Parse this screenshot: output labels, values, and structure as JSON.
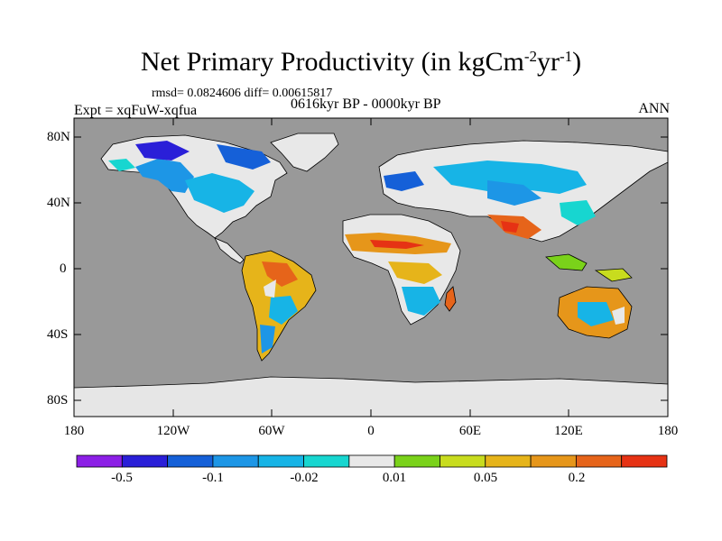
{
  "title": {
    "prefix": "Net Primary Productivity (in kgCm",
    "exp1": "-2",
    "middle": "yr",
    "exp2": "-1",
    "suffix": ")"
  },
  "stats": "rmsd= 0.0824606 diff= 0.00615817",
  "experiment": "Expt = xqFuW-xqfua",
  "period": "0616kyr BP - 0000kyr BP",
  "season": "ANN",
  "axes": {
    "y_ticks": [
      "80N",
      "40N",
      "0",
      "40S",
      "80S"
    ],
    "x_ticks": [
      "180",
      "120W",
      "60W",
      "0",
      "60E",
      "120E",
      "180"
    ]
  },
  "colorbar": {
    "colors": [
      "#8c1fe6",
      "#2a1fd8",
      "#1560d8",
      "#1d96e6",
      "#17b4e6",
      "#17d6d0",
      "#e8e8e8",
      "#7ad21a",
      "#c8dc1e",
      "#e6b41a",
      "#e6961a",
      "#e6641a",
      "#e63214"
    ],
    "labels": [
      "-0.5",
      "-0.1",
      "-0.02",
      "0.01",
      "0.05",
      "0.2"
    ]
  },
  "colors": {
    "ocean": "#999999",
    "ice": "#e6e6e6",
    "coast": "#000000"
  }
}
